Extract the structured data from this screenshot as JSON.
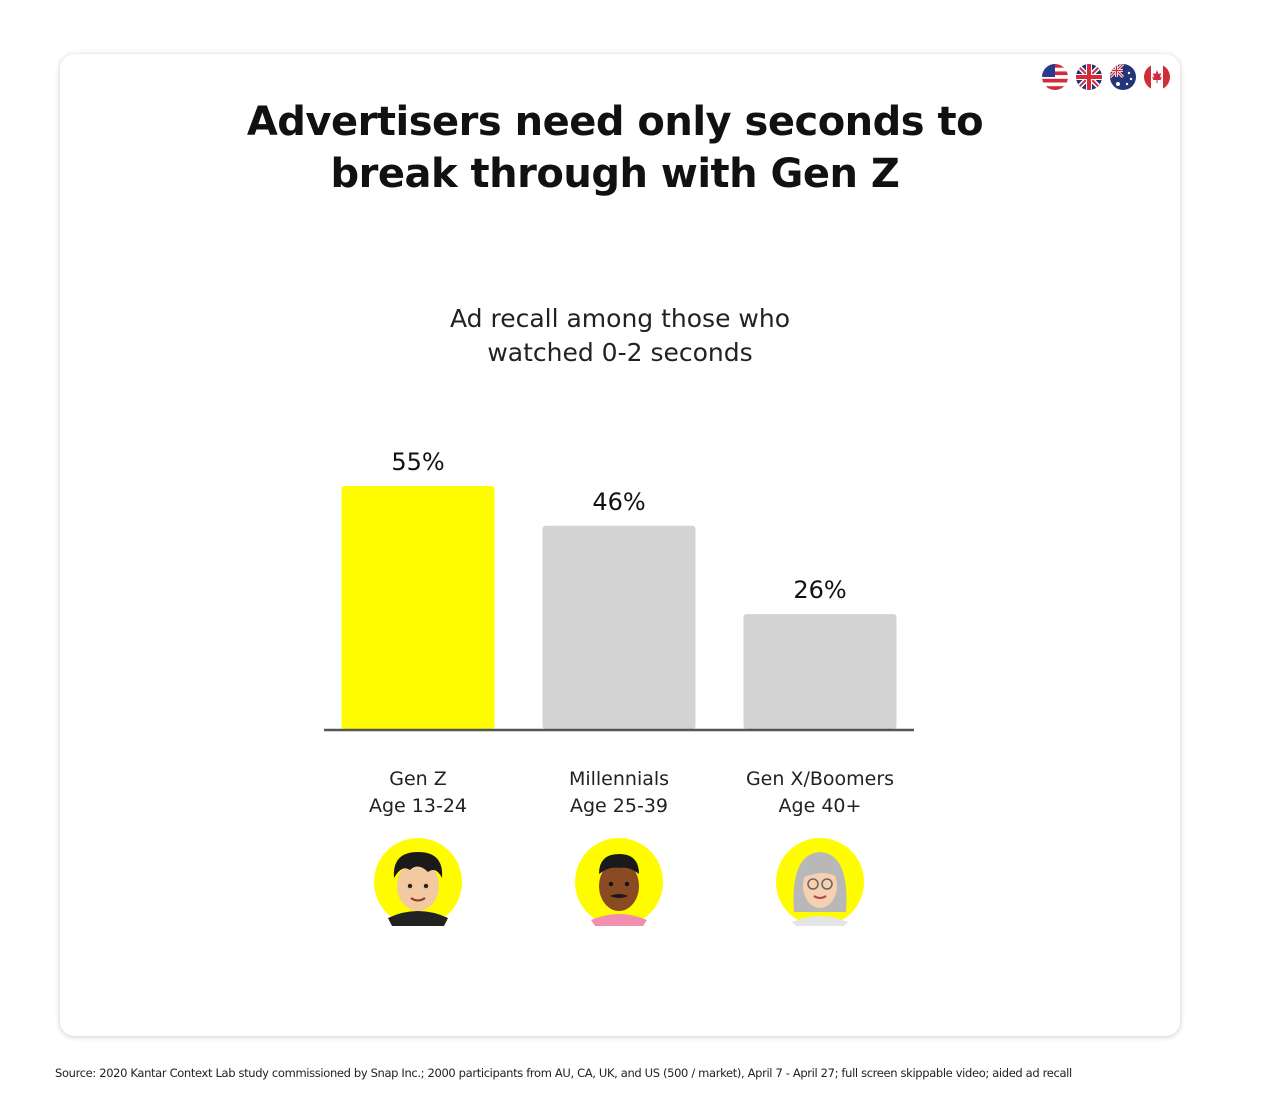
{
  "title_lines": [
    "Advertisers need only seconds to",
    "break through with Gen Z"
  ],
  "subtitle_lines": [
    "Ad recall among those who",
    "watched 0-2 seconds"
  ],
  "flags": [
    "us-flag-icon",
    "uk-flag-icon",
    "australia-flag-icon",
    "canada-flag-icon"
  ],
  "colors": {
    "highlight": "#FFFC00",
    "bar": "#D3D3D3",
    "axis": "#555555",
    "text": "#111111"
  },
  "chart_data": {
    "type": "bar",
    "categories": [
      {
        "line1": "Gen Z",
        "line2": "Age 13-24",
        "avatar": "gen-z-avatar-icon"
      },
      {
        "line1": "Millennials",
        "line2": "Age 25-39",
        "avatar": "millennial-avatar-icon"
      },
      {
        "line1": "Gen X/Boomers",
        "line2": "Age 40+",
        "avatar": "boomer-avatar-icon"
      }
    ],
    "values": [
      55,
      46,
      26
    ],
    "value_labels": [
      "55%",
      "46%",
      "26%"
    ],
    "highlight_index": 0,
    "ylim": [
      0,
      55
    ],
    "grid": false
  },
  "source": "Source: 2020 Kantar Context Lab study commissioned by Snap Inc.; 2000 participants from AU, CA, UK, and US (500 / market), April 7 - April 27; full screen skippable video; aided ad recall"
}
